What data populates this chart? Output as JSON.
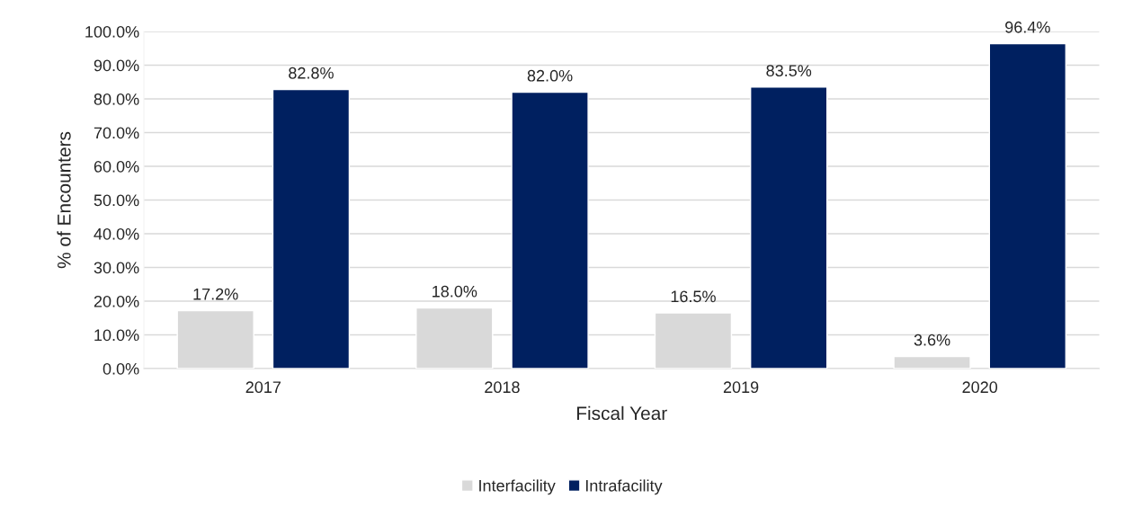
{
  "chart_data": {
    "type": "bar",
    "xlabel": "Fiscal Year",
    "ylabel": "% of Encounters",
    "categories": [
      "2017",
      "2018",
      "2019",
      "2020"
    ],
    "series": [
      {
        "name": "Interfacility",
        "color": "#d9d9d9",
        "values": [
          17.2,
          18.0,
          16.5,
          3.6
        ],
        "value_labels": [
          "17.2%",
          "18.0%",
          "16.5%",
          "3.6%"
        ]
      },
      {
        "name": "Intrafacility",
        "color": "#002060",
        "values": [
          82.8,
          82.0,
          83.5,
          96.4
        ],
        "value_labels": [
          "82.8%",
          "82.0%",
          "83.5%",
          "96.4%"
        ]
      }
    ],
    "ylim": [
      0,
      100
    ],
    "yticks": [
      {
        "value": 0,
        "label": "0.0%"
      },
      {
        "value": 10,
        "label": "10.0%"
      },
      {
        "value": 20,
        "label": "20.0%"
      },
      {
        "value": 30,
        "label": "30.0%"
      },
      {
        "value": 40,
        "label": "40.0%"
      },
      {
        "value": 50,
        "label": "50.0%"
      },
      {
        "value": 60,
        "label": "60.0%"
      },
      {
        "value": 70,
        "label": "70.0%"
      },
      {
        "value": 80,
        "label": "80.0%"
      },
      {
        "value": 90,
        "label": "90.0%"
      },
      {
        "value": 100,
        "label": "100.0%"
      }
    ],
    "grid": "y",
    "legend": "bottom"
  }
}
